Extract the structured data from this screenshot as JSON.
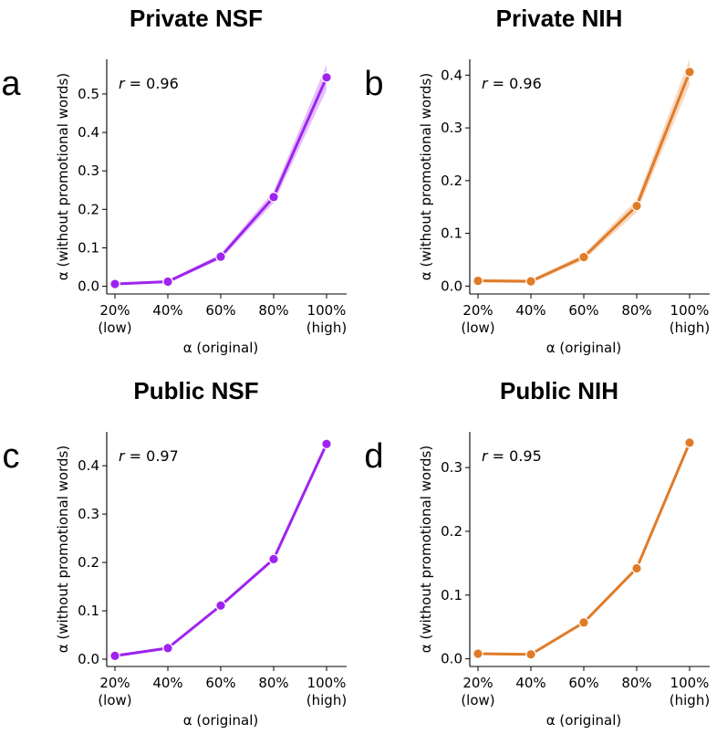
{
  "chart_data": [
    {
      "type": "line",
      "panel_letter": "a",
      "title": "Private NSF",
      "xlabel": "α (original)",
      "ylabel": "α (without promotional words)",
      "x_ticks": [
        "20%",
        "40%",
        "60%",
        "80%",
        "100%"
      ],
      "x_subticks": [
        "(low)",
        "",
        "",
        "",
        "(high)"
      ],
      "x": [
        20,
        40,
        60,
        80,
        100
      ],
      "y": [
        0.006,
        0.012,
        0.077,
        0.232,
        0.543
      ],
      "y_ticks": [
        0.0,
        0.1,
        0.2,
        0.3,
        0.4,
        0.5
      ],
      "ylim": [
        -0.02,
        0.59
      ],
      "annotation": {
        "var": "r",
        "text": " = 0.96"
      },
      "color": "#9e23ef",
      "has_ci_band": true
    },
    {
      "type": "line",
      "panel_letter": "b",
      "title": "Private NIH",
      "xlabel": "α (original)",
      "ylabel": "α (without promotional words)",
      "x_ticks": [
        "20%",
        "40%",
        "60%",
        "80%",
        "100%"
      ],
      "x_subticks": [
        "(low)",
        "",
        "",
        "",
        "(high)"
      ],
      "x": [
        20,
        40,
        60,
        80,
        100
      ],
      "y": [
        0.01,
        0.009,
        0.055,
        0.152,
        0.406
      ],
      "y_ticks": [
        0.0,
        0.1,
        0.2,
        0.3,
        0.4
      ],
      "ylim": [
        -0.015,
        0.43
      ],
      "annotation": {
        "var": "r",
        "text": " = 0.96"
      },
      "color": "#e07b28",
      "has_ci_band": true
    },
    {
      "type": "line",
      "panel_letter": "c",
      "title": "Public NSF",
      "xlabel": "α (original)",
      "ylabel": "α (without promotional words)",
      "x_ticks": [
        "20%",
        "40%",
        "60%",
        "80%",
        "100%"
      ],
      "x_subticks": [
        "(low)",
        "",
        "",
        "",
        "(high)"
      ],
      "x": [
        20,
        40,
        60,
        80,
        100
      ],
      "y": [
        0.007,
        0.023,
        0.111,
        0.207,
        0.445
      ],
      "y_ticks": [
        0.0,
        0.1,
        0.2,
        0.3,
        0.4
      ],
      "ylim": [
        -0.015,
        0.47
      ],
      "annotation": {
        "var": "r",
        "text": " = 0.97"
      },
      "color": "#9e23ef",
      "has_ci_band": false
    },
    {
      "type": "line",
      "panel_letter": "d",
      "title": "Public NIH",
      "xlabel": "α (original)",
      "ylabel": "α (without promotional words)",
      "x_ticks": [
        "20%",
        "40%",
        "60%",
        "80%",
        "100%"
      ],
      "x_subticks": [
        "(low)",
        "",
        "",
        "",
        "(high)"
      ],
      "x": [
        20,
        40,
        60,
        80,
        100
      ],
      "y": [
        0.008,
        0.007,
        0.057,
        0.142,
        0.339
      ],
      "y_ticks": [
        0.0,
        0.1,
        0.2,
        0.3
      ],
      "ylim": [
        -0.012,
        0.356
      ],
      "annotation": {
        "var": "r",
        "text": " = 0.95"
      },
      "color": "#e07b28",
      "has_ci_band": false
    }
  ]
}
